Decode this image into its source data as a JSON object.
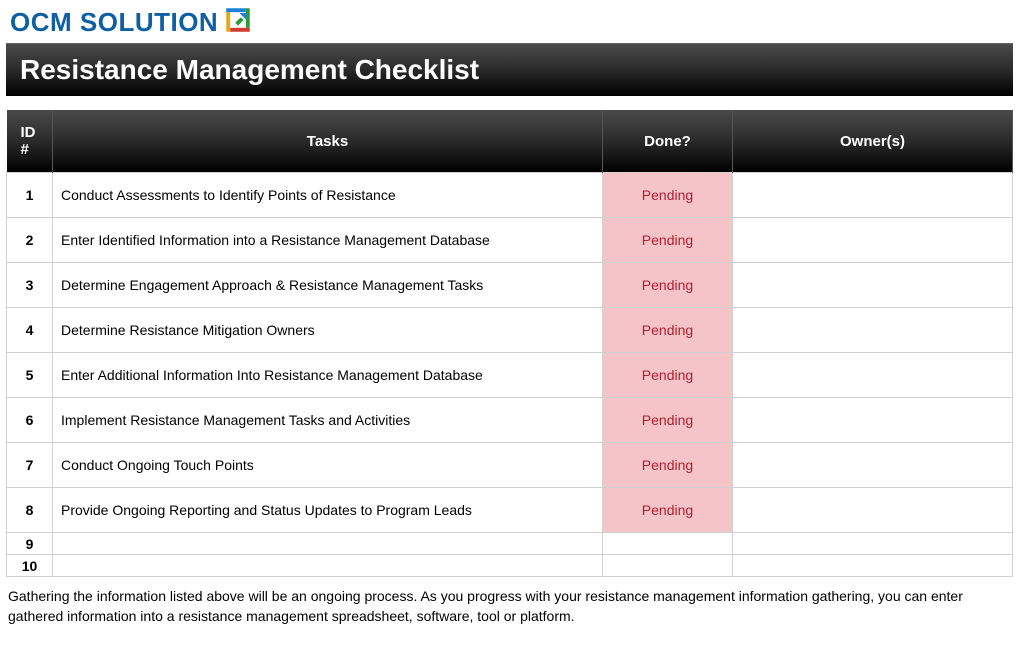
{
  "brand": {
    "logo_text": "OCM SOLUTION",
    "logo_text_color": "#0e5fa3",
    "logo_icon_colors": [
      "#1e82d4",
      "#2e9b3a",
      "#e7a814",
      "#d23a2e"
    ]
  },
  "page_title": "Resistance Management Checklist",
  "columns": {
    "id": "ID #",
    "tasks": "Tasks",
    "done": "Done?",
    "owner": "Owner(s)"
  },
  "status_labels": {
    "pending": "Pending"
  },
  "status_colors": {
    "pending_bg": "#f5c4c8",
    "pending_text": "#b02030"
  },
  "rows": [
    {
      "id": "1",
      "task": "Conduct Assessments to Identify Points of Resistance",
      "status": "Pending",
      "owner": ""
    },
    {
      "id": "2",
      "task": "Enter Identified Information into a Resistance Management Database",
      "status": "Pending",
      "owner": ""
    },
    {
      "id": "3",
      "task": "Determine Engagement Approach & Resistance Management Tasks",
      "status": "Pending",
      "owner": ""
    },
    {
      "id": "4",
      "task": "Determine Resistance Mitigation Owners",
      "status": "Pending",
      "owner": ""
    },
    {
      "id": "5",
      "task": "Enter Additional Information Into Resistance Management Database",
      "status": "Pending",
      "owner": ""
    },
    {
      "id": "6",
      "task": "Implement Resistance Management Tasks and Activities",
      "status": "Pending",
      "owner": ""
    },
    {
      "id": "7",
      "task": "Conduct Ongoing Touch Points",
      "status": "Pending",
      "owner": ""
    },
    {
      "id": "8",
      "task": "Provide Ongoing Reporting and Status Updates to Program Leads",
      "status": "Pending",
      "owner": ""
    },
    {
      "id": "9",
      "task": "",
      "status": "",
      "owner": ""
    },
    {
      "id": "10",
      "task": "",
      "status": "",
      "owner": ""
    }
  ],
  "footer_note": "Gathering the information listed above will be an ongoing process. As you progress with your resistance management information gathering, you can enter gathered information into a resistance management spreadsheet, software, tool or platform.",
  "table_style": {
    "header_gradient_from": "#4a4a4a",
    "header_gradient_to": "#000000",
    "border_color": "#d0d0d0",
    "font_size_body": 14,
    "font_size_header": 15,
    "row_height_normal": 48,
    "row_height_short": 22
  }
}
